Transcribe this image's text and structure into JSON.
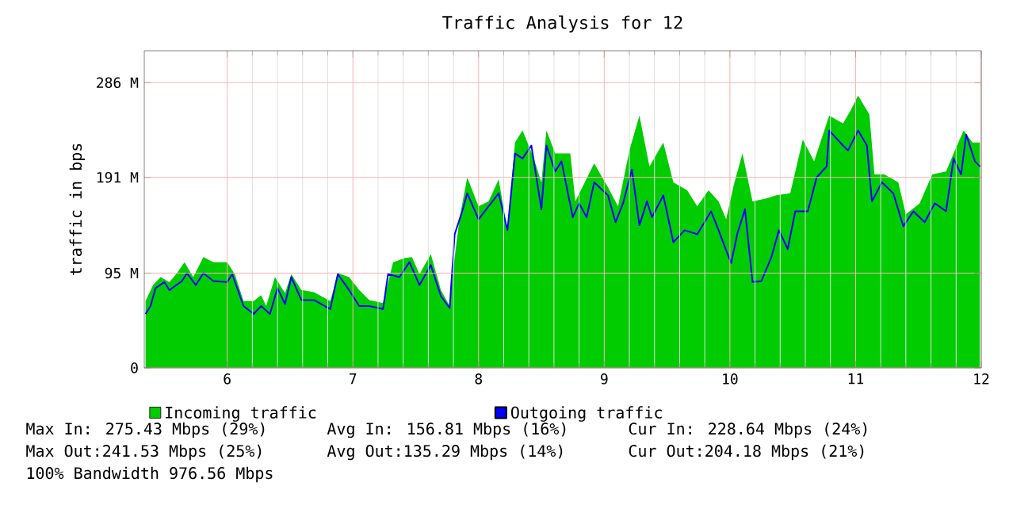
{
  "chart_data": {
    "type": "area",
    "title": "Traffic Analysis for 12",
    "ylabel": "traffic in bps",
    "xlim": [
      5.34,
      12
    ],
    "xticks": [
      6,
      7,
      8,
      9,
      10,
      11,
      12
    ],
    "ylim": [
      0,
      318
    ],
    "yticks": [
      0,
      {
        "value": 95,
        "label": "95 M"
      },
      {
        "value": 191,
        "label": "191 M"
      },
      {
        "value": 286,
        "label": "286 M"
      }
    ],
    "grid": true,
    "legend": "bottom",
    "series": [
      {
        "name": "Incoming traffic",
        "color": "#00cc00",
        "x": [
          5.35,
          5.41,
          5.47,
          5.54,
          5.6,
          5.66,
          5.73,
          5.81,
          5.89,
          6.0,
          6.06,
          6.13,
          6.21,
          6.27,
          6.31,
          6.38,
          6.46,
          6.51,
          6.59,
          6.69,
          6.82,
          6.88,
          6.97,
          7.05,
          7.13,
          7.24,
          7.32,
          7.41,
          7.47,
          7.53,
          7.62,
          7.7,
          7.77,
          7.81,
          7.85,
          7.91,
          8.0,
          8.08,
          8.16,
          8.23,
          8.29,
          8.35,
          8.44,
          8.5,
          8.54,
          8.61,
          8.73,
          8.77,
          8.92,
          9.03,
          9.11,
          9.2,
          9.28,
          9.36,
          9.47,
          9.55,
          9.66,
          9.74,
          9.83,
          9.91,
          9.97,
          10.03,
          10.1,
          10.18,
          10.29,
          10.37,
          10.48,
          10.58,
          10.67,
          10.79,
          10.9,
          10.96,
          11.02,
          11.11,
          11.15,
          11.23,
          11.34,
          11.4,
          11.51,
          11.61,
          11.72,
          11.8,
          11.86,
          11.93,
          11.99
        ],
        "values": [
          67,
          83,
          91,
          86,
          95,
          106,
          91,
          111,
          106,
          106,
          94,
          67,
          67,
          73,
          62,
          91,
          75,
          94,
          78,
          76,
          67,
          95,
          91,
          78,
          68,
          65,
          106,
          110,
          111,
          94,
          114,
          78,
          62,
          111,
          151,
          191,
          162,
          167,
          189,
          138,
          226,
          238,
          210,
          186,
          238,
          215,
          215,
          167,
          205,
          181,
          162,
          218,
          253,
          202,
          226,
          186,
          178,
          162,
          178,
          167,
          149,
          183,
          215,
          167,
          170,
          173,
          175,
          229,
          207,
          253,
          245,
          258,
          273,
          254,
          194,
          194,
          186,
          154,
          165,
          194,
          197,
          221,
          238,
          226,
          226
        ]
      },
      {
        "name": "Outgoing traffic",
        "type": "line",
        "color": "#0000ff",
        "x": [
          5.35,
          5.39,
          5.43,
          5.5,
          5.54,
          5.64,
          5.68,
          5.75,
          5.81,
          5.89,
          6.0,
          6.04,
          6.13,
          6.21,
          6.27,
          6.34,
          6.4,
          6.46,
          6.51,
          6.59,
          6.69,
          6.82,
          6.88,
          6.97,
          7.05,
          7.13,
          7.24,
          7.28,
          7.37,
          7.45,
          7.53,
          7.62,
          7.7,
          7.77,
          7.81,
          7.87,
          7.91,
          8.0,
          8.08,
          8.16,
          8.23,
          8.29,
          8.35,
          8.42,
          8.5,
          8.54,
          8.61,
          8.66,
          8.75,
          8.8,
          8.86,
          8.92,
          9.03,
          9.09,
          9.15,
          9.22,
          9.28,
          9.34,
          9.38,
          9.47,
          9.55,
          9.64,
          9.74,
          9.85,
          9.91,
          9.97,
          10.01,
          10.06,
          10.12,
          10.18,
          10.25,
          10.33,
          10.39,
          10.46,
          10.52,
          10.62,
          10.69,
          10.77,
          10.79,
          10.9,
          10.94,
          11.02,
          11.09,
          11.13,
          11.21,
          11.3,
          11.38,
          11.46,
          11.55,
          11.63,
          11.72,
          11.78,
          11.84,
          11.88,
          11.95,
          11.99
        ],
        "values": [
          54,
          62,
          80,
          86,
          78,
          87,
          95,
          83,
          95,
          87,
          86,
          94,
          62,
          54,
          62,
          54,
          80,
          64,
          91,
          68,
          68,
          59,
          94,
          78,
          62,
          62,
          59,
          94,
          91,
          106,
          83,
          103,
          72,
          60,
          134,
          157,
          175,
          149,
          162,
          175,
          138,
          215,
          210,
          223,
          159,
          223,
          197,
          207,
          151,
          165,
          151,
          186,
          173,
          146,
          165,
          199,
          143,
          167,
          151,
          173,
          126,
          138,
          134,
          157,
          138,
          118,
          105,
          135,
          159,
          86,
          87,
          111,
          138,
          119,
          157,
          157,
          191,
          202,
          238,
          223,
          218,
          238,
          223,
          167,
          186,
          175,
          142,
          157,
          146,
          165,
          157,
          210,
          194,
          234,
          207,
          202
        ]
      }
    ],
    "annotations": [
      "Max In: 275.43 Mbps (29%)",
      "Avg In: 156.81 Mbps (16%)",
      "Cur In: 228.64 Mbps (24%)",
      "Max Out:241.53 Mbps (25%)",
      "Avg Out:135.29 Mbps (14%)",
      "Cur Out:204.18 Mbps (21%)",
      "100% Bandwidth 976.56 Mbps"
    ]
  }
}
